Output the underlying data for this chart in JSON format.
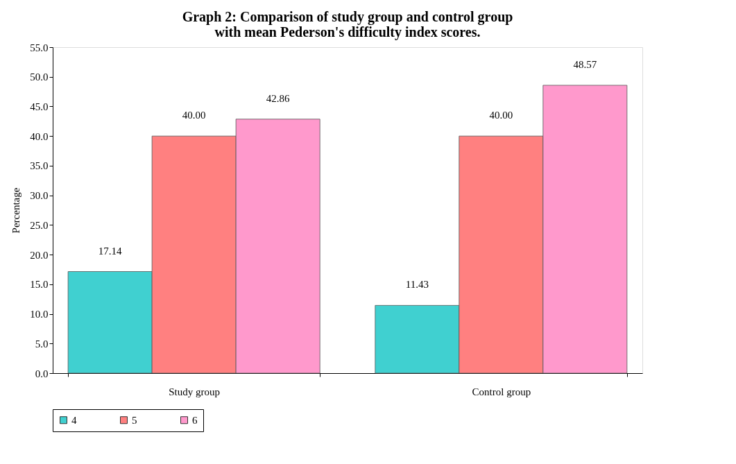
{
  "chart_data": {
    "type": "bar",
    "title": "Graph 2: Comparison of study group and control group with mean Pederson's difficulty index scores.",
    "ylabel": "Percentage",
    "categories": [
      "Study group",
      "Control group"
    ],
    "series": [
      {
        "name": "4",
        "color": "#40d0d0",
        "values": [
          17.14,
          11.43
        ],
        "value_labels": [
          "17.14",
          "11.43"
        ]
      },
      {
        "name": "5",
        "color": "#ff8080",
        "values": [
          40.0,
          40.0
        ],
        "value_labels": [
          "40.00",
          "40.00"
        ]
      },
      {
        "name": "6",
        "color": "#ff99cc",
        "values": [
          42.86,
          48.57
        ],
        "value_labels": [
          "42.86",
          "48.57"
        ]
      }
    ],
    "ylim": [
      0,
      55
    ],
    "yticks": [
      {
        "value": 0,
        "label": "0.0"
      },
      {
        "value": 5,
        "label": "5.0"
      },
      {
        "value": 10,
        "label": "10.0"
      },
      {
        "value": 15,
        "label": "15.0"
      },
      {
        "value": 20,
        "label": "20.0"
      },
      {
        "value": 25,
        "label": "25.0"
      },
      {
        "value": 30,
        "label": "30.0"
      },
      {
        "value": 35,
        "label": "35.0"
      },
      {
        "value": 40,
        "label": "40.0"
      },
      {
        "value": 45,
        "label": "45.0"
      },
      {
        "value": 50,
        "label": "50.0"
      },
      {
        "value": 55,
        "label": "55.0"
      }
    ],
    "grid": false,
    "legend": "bottom"
  }
}
